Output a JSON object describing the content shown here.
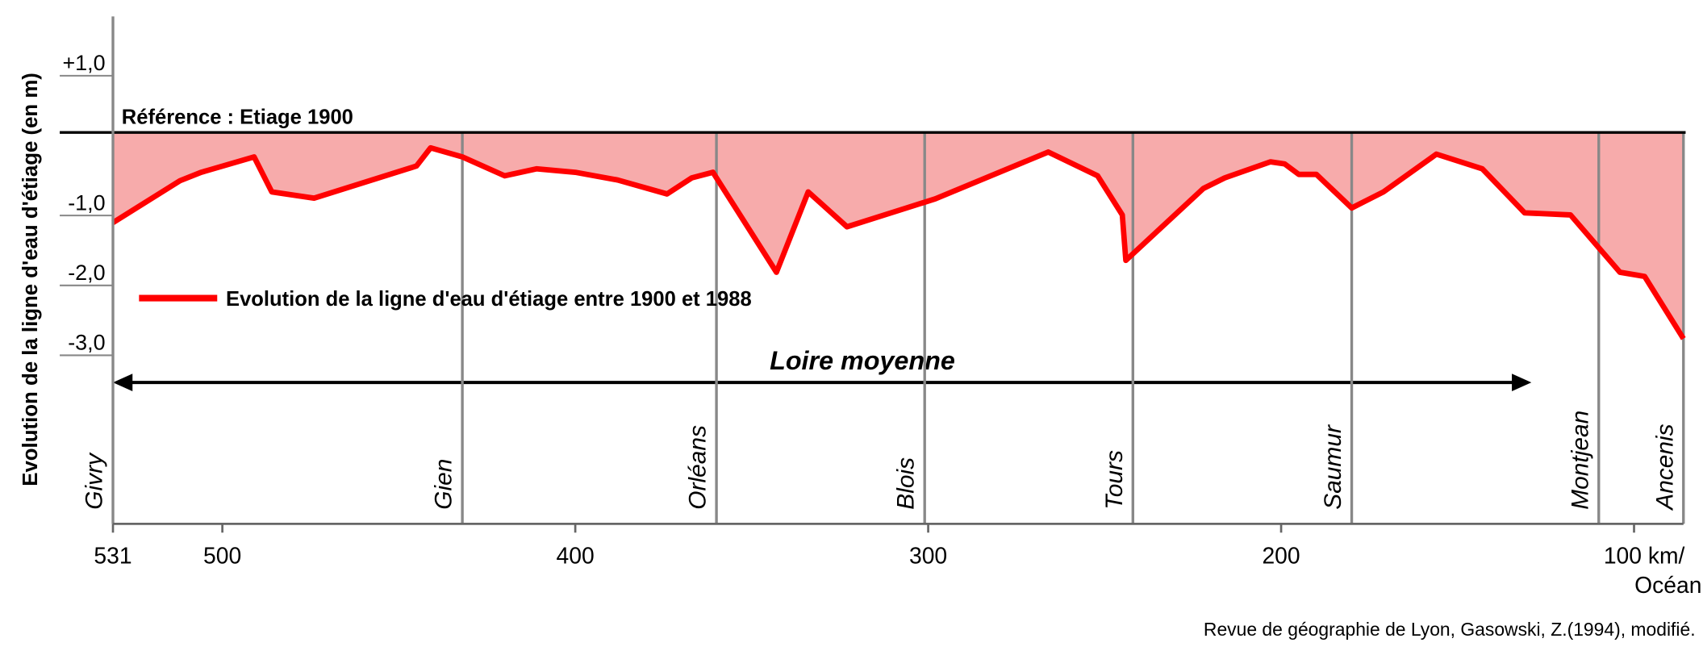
{
  "chart_data": {
    "type": "line",
    "y_axis_label": "Evolution de la ligne d'eau d'étiage (en m)",
    "reference_label": "Référence : Etiage 1900",
    "span_label": "Loire moyenne",
    "x_end_label": "Océan",
    "source": "Revue de géographie de Lyon, Gasowski, Z.(1994), modifié.",
    "series": [
      {
        "name": "Evolution de la ligne d'eau d'étiage entre 1900 et 1988",
        "color": "#ff0000",
        "fill": "#f7abab",
        "x": [
          531,
          512,
          506,
          491,
          486,
          474,
          445,
          441,
          432,
          420,
          411,
          400,
          388,
          374,
          367,
          361,
          343,
          334,
          323,
          298,
          266,
          252,
          245,
          244,
          222,
          216,
          203,
          199,
          195,
          190,
          180,
          171,
          156,
          143,
          131,
          118,
          104,
          97,
          86
        ],
        "values": [
          -1.29,
          -0.69,
          -0.57,
          -0.35,
          -0.85,
          -0.94,
          -0.48,
          -0.22,
          -0.35,
          -0.62,
          -0.52,
          -0.57,
          -0.68,
          -0.88,
          -0.65,
          -0.57,
          -2.0,
          -0.85,
          -1.35,
          -0.95,
          -0.28,
          -0.62,
          -1.18,
          -1.83,
          -0.8,
          -0.65,
          -0.42,
          -0.45,
          -0.6,
          -0.6,
          -1.08,
          -0.85,
          -0.31,
          -0.52,
          -1.15,
          -1.18,
          -2.0,
          -2.06,
          -2.95
        ]
      }
    ],
    "towns": [
      {
        "name": "Givry",
        "km": 531
      },
      {
        "name": "Gien",
        "km": 432
      },
      {
        "name": "Orléans",
        "km": 360
      },
      {
        "name": "Blois",
        "km": 301
      },
      {
        "name": "Tours",
        "km": 242
      },
      {
        "name": "Saumur",
        "km": 180
      },
      {
        "name": "Montjean",
        "km": 110
      },
      {
        "name": "Ancenis",
        "km": 86
      }
    ],
    "xlim": [
      531,
      86
    ],
    "ylim": [
      1.66,
      -5.6
    ],
    "xticks": [
      531,
      500,
      400,
      300,
      200,
      {
        "value": 100,
        "label": "100 km/"
      }
    ],
    "yticks": [
      {
        "value": 1.0,
        "label": "+1,0"
      },
      {
        "value": -1.0,
        "label": "-1,0"
      },
      {
        "value": -2.0,
        "label": "-2,0"
      },
      {
        "value": -3.0,
        "label": "-3,0"
      }
    ]
  }
}
